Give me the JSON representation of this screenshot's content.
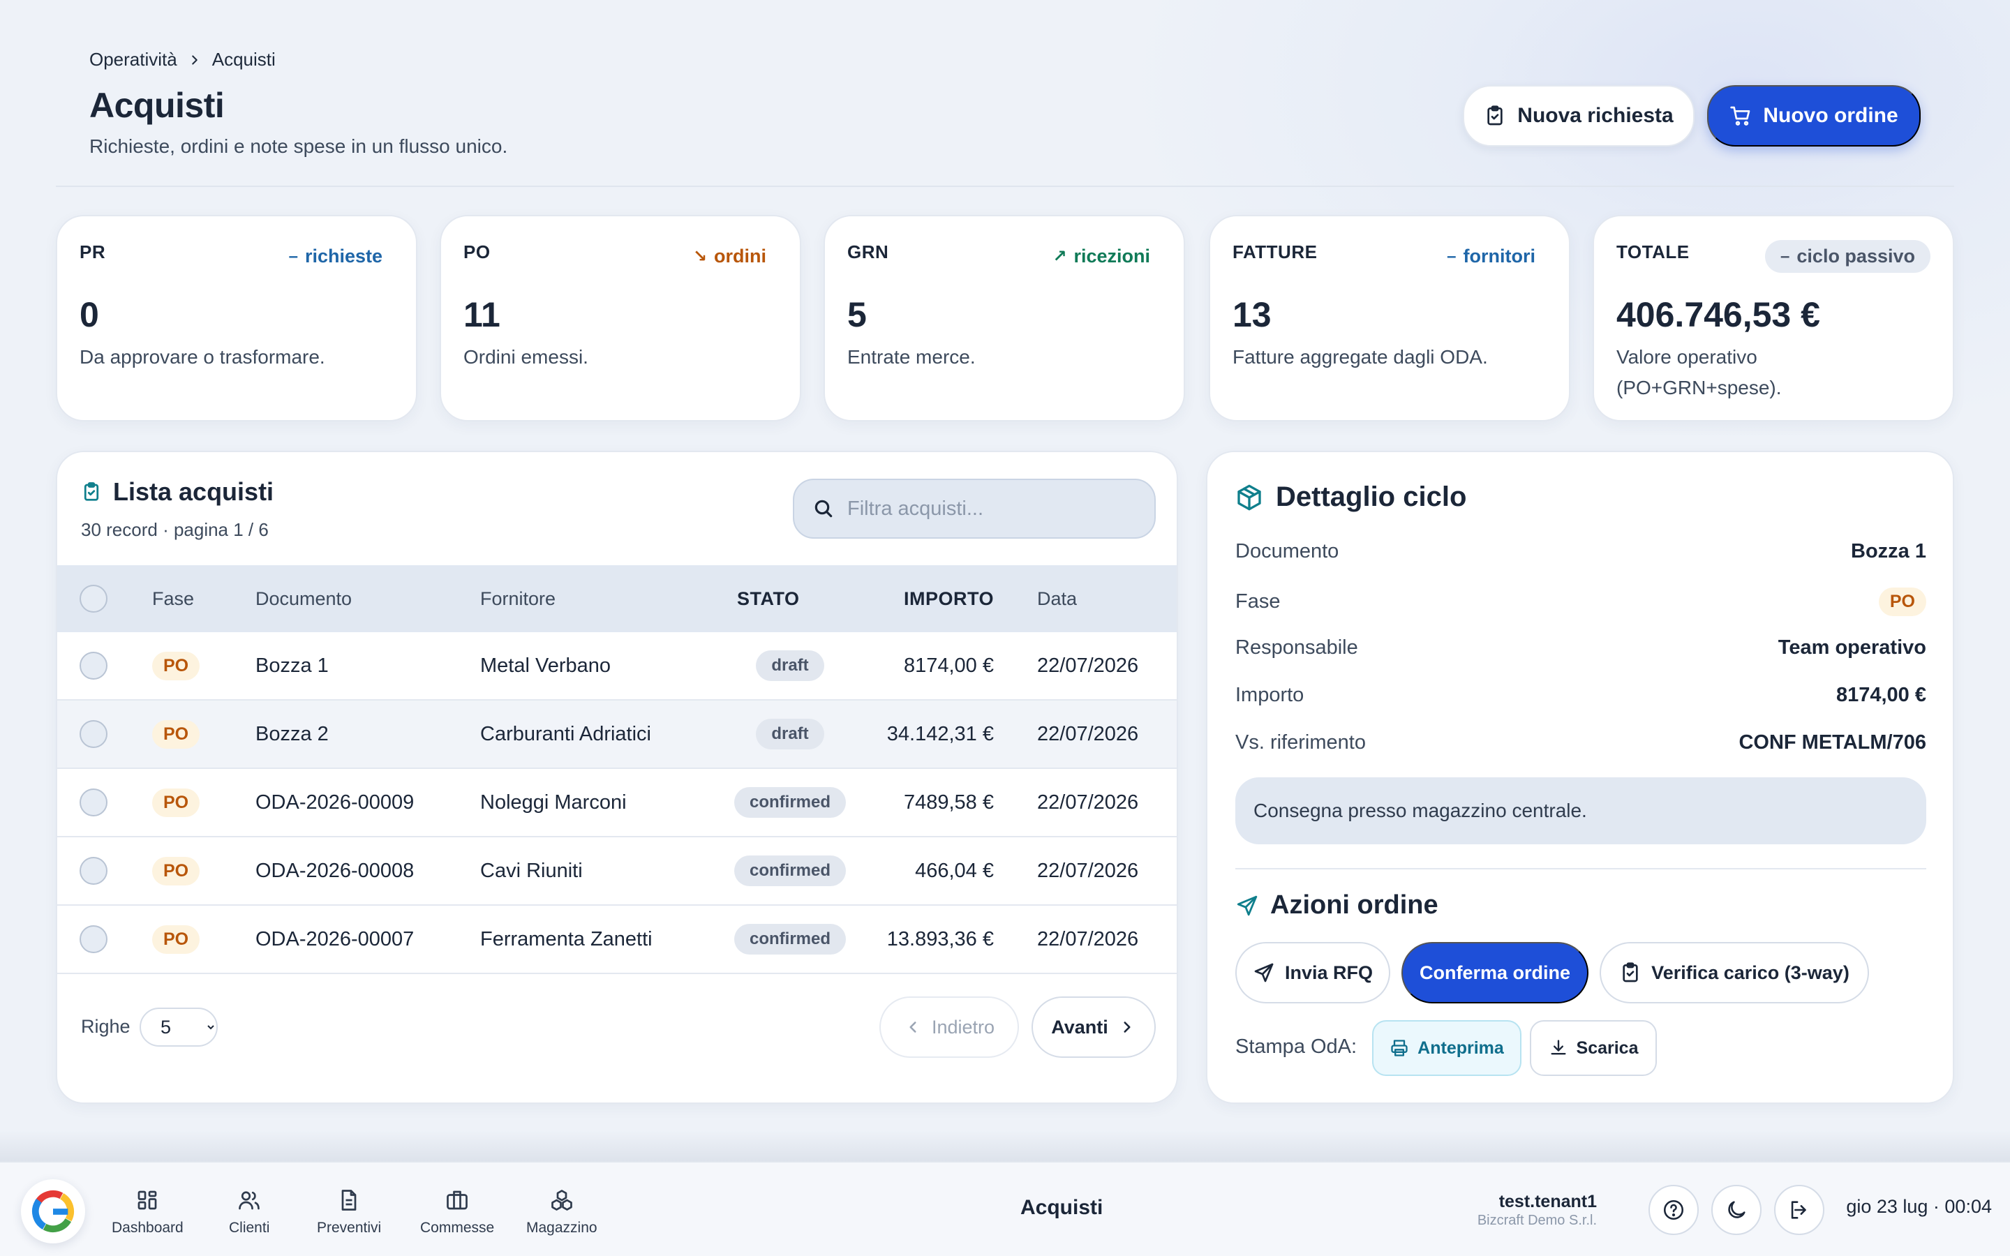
{
  "breadcrumb": [
    "Operatività",
    "Acquisti"
  ],
  "header": {
    "title": "Acquisti",
    "subtitle": "Richieste, ordini e note spese in un flusso unico.",
    "btn_new_request": "Nuova richiesta",
    "btn_new_order": "Nuovo ordine"
  },
  "kpis": [
    {
      "label": "PR",
      "tag": "richieste",
      "tag_glyph": "–",
      "value": "0",
      "desc": "Da approvare o trasformare."
    },
    {
      "label": "PO",
      "tag": "ordini",
      "tag_glyph": "↘",
      "value": "11",
      "desc": "Ordini emessi."
    },
    {
      "label": "GRN",
      "tag": "ricezioni",
      "tag_glyph": "↗",
      "value": "5",
      "desc": "Entrate merce."
    },
    {
      "label": "FATTURE",
      "tag": "fornitori",
      "tag_glyph": "–",
      "value": "13",
      "desc": "Fatture aggregate dagli ODA."
    },
    {
      "label": "TOTALE",
      "tag": "ciclo passivo",
      "tag_glyph": "–",
      "value": "406.746,53 €",
      "desc": "Valore operativo (PO+GRN+spese)."
    }
  ],
  "list": {
    "title": "Lista acquisti",
    "meta": "30 record · pagina 1 / 6",
    "search_placeholder": "Filtra acquisti...",
    "columns": {
      "phase": "Fase",
      "document": "Documento",
      "supplier": "Fornitore",
      "status": "STATO",
      "amount": "IMPORTO",
      "date": "Data"
    },
    "rows": [
      {
        "phase": "PO",
        "document": "Bozza 1",
        "supplier": "Metal Verbano",
        "status": "draft",
        "amount": "8174,00 €",
        "date": "22/07/2026"
      },
      {
        "phase": "PO",
        "document": "Bozza 2",
        "supplier": "Carburanti Adriatici",
        "status": "draft",
        "amount": "34.142,31 €",
        "date": "22/07/2026"
      },
      {
        "phase": "PO",
        "document": "ODA-2026-00009",
        "supplier": "Noleggi Marconi",
        "status": "confirmed",
        "amount": "7489,58 €",
        "date": "22/07/2026"
      },
      {
        "phase": "PO",
        "document": "ODA-2026-00008",
        "supplier": "Cavi Riuniti",
        "status": "confirmed",
        "amount": "466,04 €",
        "date": "22/07/2026"
      },
      {
        "phase": "PO",
        "document": "ODA-2026-00007",
        "supplier": "Ferramenta Zanetti",
        "status": "confirmed",
        "amount": "13.893,36 €",
        "date": "22/07/2026"
      }
    ],
    "rows_label": "Righe",
    "rows_value": "5",
    "prev_label": "Indietro",
    "next_label": "Avanti"
  },
  "detail": {
    "title": "Dettaglio ciclo",
    "fields": [
      {
        "key": "Documento",
        "value": "Bozza 1"
      },
      {
        "key": "Fase",
        "value": "PO"
      },
      {
        "key": "Responsabile",
        "value": "Team operativo"
      },
      {
        "key": "Importo",
        "value": "8174,00 €"
      },
      {
        "key": "Vs. riferimento",
        "value": "CONF METALM/706"
      }
    ],
    "note": "Consegna presso magazzino centrale.",
    "actions_title": "Azioni ordine",
    "btn_rfq": "Invia RFQ",
    "btn_confirm": "Conferma ordine",
    "btn_verify": "Verifica carico (3-way)",
    "print_label": "Stampa OdA:",
    "btn_preview": "Anteprima",
    "btn_download": "Scarica"
  },
  "taskbar": {
    "nav": [
      "Dashboard",
      "Clienti",
      "Preventivi",
      "Commesse",
      "Magazzino"
    ],
    "title": "Acquisti",
    "user": "test.tenant1",
    "company": "Bizcraft Demo S.r.l.",
    "clock": "gio 23 lug · 00:04"
  },
  "colors": {
    "accent": "#1e4fd8",
    "phase": "#b8560a",
    "preview": "#0f6e8c"
  }
}
